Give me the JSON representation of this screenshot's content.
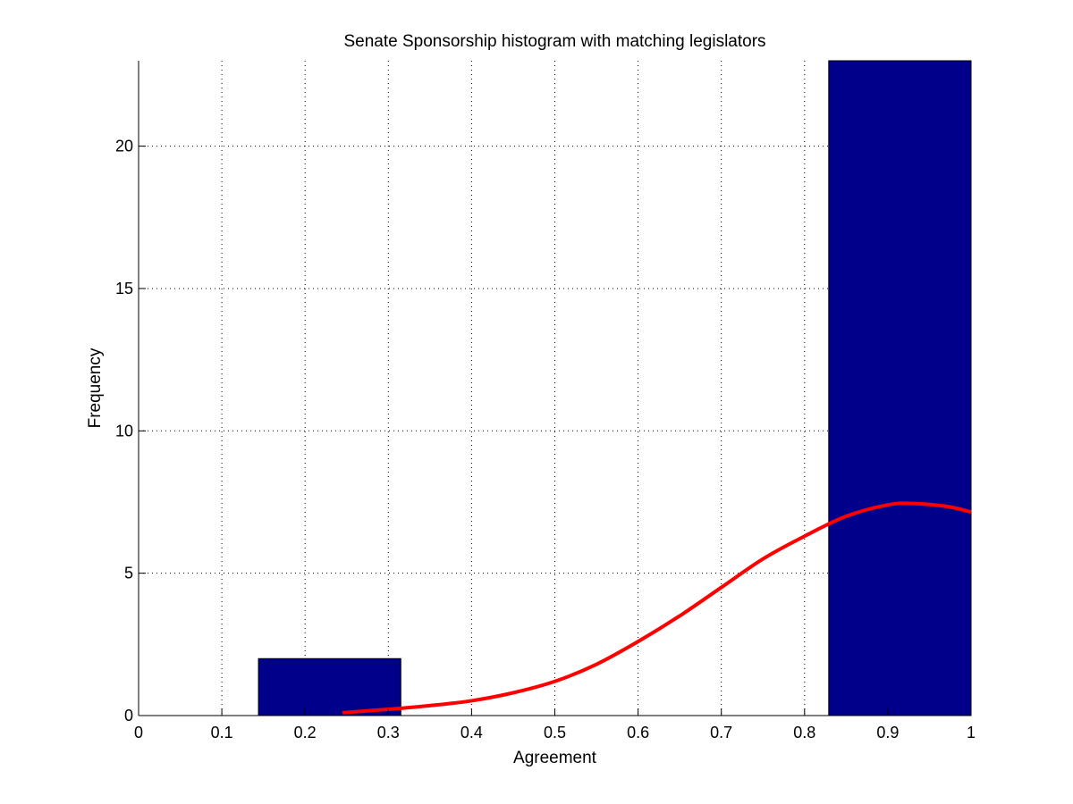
{
  "chart_data": {
    "type": "bar",
    "title": "Senate Sponsorship histogram with matching legislators",
    "xlabel": "Agreement",
    "ylabel": "Frequency",
    "xlim": [
      0,
      1
    ],
    "ylim": [
      0,
      23
    ],
    "x_ticks": [
      "0",
      "0.1",
      "0.2",
      "0.3",
      "0.4",
      "0.5",
      "0.6",
      "0.7",
      "0.8",
      "0.9",
      "1"
    ],
    "y_ticks": [
      "0",
      "5",
      "10",
      "15",
      "20"
    ],
    "grid": true,
    "bins": [
      {
        "start": 0.144,
        "end": 0.315,
        "count": 2
      },
      {
        "start": 0.315,
        "end": 0.486,
        "count": 0
      },
      {
        "start": 0.486,
        "end": 0.658,
        "count": 0
      },
      {
        "start": 0.658,
        "end": 0.829,
        "count": 0
      },
      {
        "start": 0.829,
        "end": 1.0,
        "count": 23
      }
    ],
    "bar_color": "#00008B",
    "fit_curve": {
      "color": "#FF0000",
      "x": [
        0.245,
        0.3,
        0.35,
        0.4,
        0.45,
        0.5,
        0.55,
        0.6,
        0.65,
        0.7,
        0.75,
        0.8,
        0.85,
        0.9,
        0.93,
        0.97,
        1.0
      ],
      "y": [
        0.1,
        0.22,
        0.35,
        0.52,
        0.8,
        1.2,
        1.8,
        2.6,
        3.5,
        4.5,
        5.5,
        6.3,
        7.0,
        7.4,
        7.45,
        7.35,
        7.15
      ]
    }
  }
}
